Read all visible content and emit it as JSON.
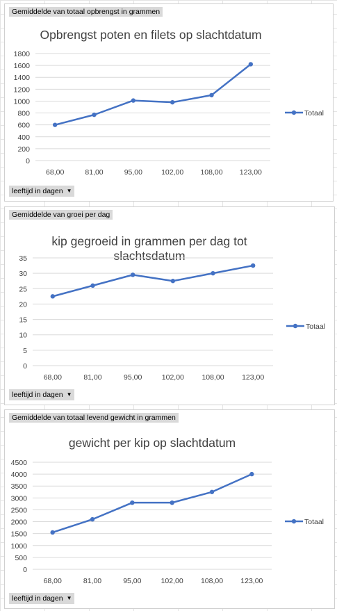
{
  "chart_data": [
    {
      "type": "line",
      "pivot_field": "Gemiddelde  van totaal opbrengst in grammen",
      "title_lines": [
        "Opbrengst poten en filets op slachtdatum"
      ],
      "categories": [
        "68,00",
        "81,00",
        "95,00",
        "102,00",
        "108,00",
        "123,00"
      ],
      "series": [
        {
          "name": "Totaal",
          "values": [
            600,
            770,
            1010,
            980,
            1100,
            1620
          ]
        }
      ],
      "yticks": [
        "0",
        "200",
        "400",
        "600",
        "800",
        "1000",
        "1200",
        "1400",
        "1600",
        "1800"
      ],
      "ylim": [
        0,
        1800
      ],
      "grid": true,
      "legend": "right",
      "filter_label": "leeftijd in  dagen",
      "color": "#4472c4"
    },
    {
      "type": "line",
      "pivot_field": "Gemiddelde  van groei per dag",
      "title_lines": [
        "kip gegroeid in grammen per dag tot",
        "slachtsdatum"
      ],
      "categories": [
        "68,00",
        "81,00",
        "95,00",
        "102,00",
        "108,00",
        "123,00"
      ],
      "series": [
        {
          "name": "Totaal",
          "values": [
            22.5,
            26,
            29.5,
            27.5,
            30,
            32.5
          ]
        }
      ],
      "yticks": [
        "0",
        "5",
        "10",
        "15",
        "20",
        "25",
        "30",
        "35"
      ],
      "ylim": [
        0,
        35
      ],
      "grid": true,
      "legend": "right",
      "filter_label": "leeftijd in  dagen",
      "color": "#4472c4"
    },
    {
      "type": "line",
      "pivot_field": "Gemiddelde  van totaal levend gewicht in grammen",
      "title_lines": [
        "gewicht per kip op slachtdatum"
      ],
      "categories": [
        "68,00",
        "81,00",
        "95,00",
        "102,00",
        "108,00",
        "123,00"
      ],
      "series": [
        {
          "name": "Totaal",
          "values": [
            1550,
            2100,
            2800,
            2800,
            3250,
            4000
          ]
        }
      ],
      "yticks": [
        "0",
        "500",
        "1000",
        "1500",
        "2000",
        "2500",
        "3000",
        "3500",
        "4000",
        "4500"
      ],
      "ylim": [
        0,
        4500
      ],
      "grid": true,
      "legend": "right",
      "filter_label": "leeftijd in  dagen",
      "color": "#4472c4"
    }
  ]
}
